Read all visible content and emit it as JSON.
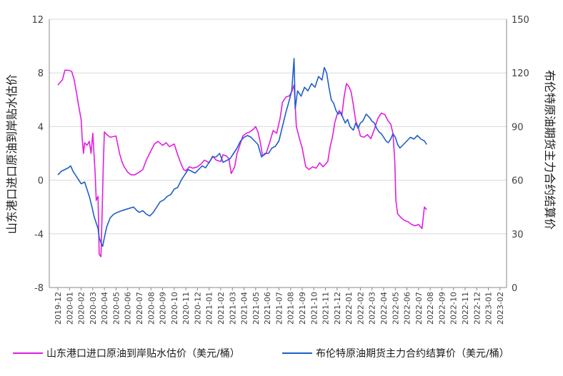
{
  "chart_data": {
    "type": "line",
    "y_left": {
      "label": "山东港口进口原油到岸贴水估价",
      "ticks": [
        "12",
        "8",
        "4",
        "0",
        "-4",
        "-8"
      ],
      "lim": [
        -8,
        12
      ]
    },
    "y_right": {
      "label": "布伦特原油期货主力合约结算价",
      "ticks": [
        "150",
        "120",
        "90",
        "60",
        "30",
        "0"
      ],
      "lim": [
        0,
        150
      ]
    },
    "x_labels": [
      "2019-12",
      "2020-01",
      "2020-02",
      "2020-03",
      "2020-04",
      "2020-05",
      "2020-06",
      "2020-07",
      "2020-08",
      "2020-09",
      "2020-10",
      "2020-11",
      "2020-12",
      "2021-01",
      "2021-02",
      "2021-03",
      "2021-04",
      "2021-05",
      "2021-06",
      "2021-07",
      "2021-08",
      "2021-09",
      "2021-10",
      "2021-11",
      "2021-12",
      "2022-01",
      "2022-02",
      "2022-03",
      "2022-04",
      "2022-05",
      "2022-06",
      "2022-07",
      "2022-08",
      "2022-09",
      "2022-10",
      "2022-11",
      "2022-12",
      "2023-01",
      "2023-02"
    ],
    "grid": "horizontal",
    "legend_position": "bottom",
    "series": [
      {
        "name": "山东港口进口原油到岸贴水估价（美元/桶）",
        "axis": "left",
        "color": "#e21ee2",
        "points": [
          [
            0,
            7.1
          ],
          [
            0.2,
            7.3
          ],
          [
            0.4,
            7.5
          ],
          [
            0.6,
            8.2
          ],
          [
            0.9,
            8.2
          ],
          [
            1.2,
            8.1
          ],
          [
            1.4,
            7.5
          ],
          [
            1.6,
            6.5
          ],
          [
            1.8,
            5.5
          ],
          [
            2.0,
            4.5
          ],
          [
            2.1,
            3.0
          ],
          [
            2.2,
            2.0
          ],
          [
            2.3,
            2.8
          ],
          [
            2.5,
            2.6
          ],
          [
            2.7,
            2.9
          ],
          [
            2.85,
            2.0
          ],
          [
            3.0,
            3.5
          ],
          [
            3.1,
            2.0
          ],
          [
            3.2,
            0.6
          ],
          [
            3.3,
            -1.5
          ],
          [
            3.45,
            -1.2
          ],
          [
            3.55,
            -5.5
          ],
          [
            3.7,
            -5.7
          ],
          [
            3.8,
            -2.5
          ],
          [
            3.9,
            1.0
          ],
          [
            4.0,
            3.6
          ],
          [
            4.2,
            3.4
          ],
          [
            4.5,
            3.2
          ],
          [
            5.0,
            3.3
          ],
          [
            5.3,
            2.0
          ],
          [
            5.5,
            1.4
          ],
          [
            5.7,
            1.0
          ],
          [
            6.0,
            0.6
          ],
          [
            6.3,
            0.4
          ],
          [
            6.6,
            0.4
          ],
          [
            7.0,
            0.6
          ],
          [
            7.3,
            0.8
          ],
          [
            7.6,
            1.5
          ],
          [
            8.0,
            2.2
          ],
          [
            8.3,
            2.7
          ],
          [
            8.6,
            2.9
          ],
          [
            9.0,
            2.6
          ],
          [
            9.3,
            2.8
          ],
          [
            9.6,
            2.5
          ],
          [
            10.0,
            2.7
          ],
          [
            10.3,
            1.9
          ],
          [
            10.6,
            1.2
          ],
          [
            10.8,
            0.8
          ],
          [
            11.0,
            0.7
          ],
          [
            11.3,
            1.0
          ],
          [
            11.6,
            0.9
          ],
          [
            12.0,
            1.0
          ],
          [
            12.3,
            1.2
          ],
          [
            12.6,
            1.5
          ],
          [
            13.0,
            1.3
          ],
          [
            13.3,
            1.8
          ],
          [
            13.6,
            1.5
          ],
          [
            14.0,
            1.4
          ],
          [
            14.2,
            1.9
          ],
          [
            14.5,
            1.8
          ],
          [
            14.7,
            1.6
          ],
          [
            14.9,
            0.5
          ],
          [
            15.2,
            1.0
          ],
          [
            15.4,
            2.0
          ],
          [
            15.6,
            2.5
          ],
          [
            15.9,
            3.3
          ],
          [
            16.2,
            3.5
          ],
          [
            16.5,
            3.6
          ],
          [
            16.8,
            3.8
          ],
          [
            17.0,
            4.0
          ],
          [
            17.2,
            3.6
          ],
          [
            17.4,
            2.8
          ],
          [
            17.6,
            1.8
          ],
          [
            17.9,
            2.0
          ],
          [
            18.2,
            2.8
          ],
          [
            18.5,
            3.7
          ],
          [
            18.8,
            3.5
          ],
          [
            19.1,
            4.6
          ],
          [
            19.3,
            5.8
          ],
          [
            19.6,
            6.2
          ],
          [
            19.9,
            6.3
          ],
          [
            20.1,
            6.6
          ],
          [
            20.3,
            7.1
          ],
          [
            20.5,
            4.0
          ],
          [
            20.8,
            3.0
          ],
          [
            21.0,
            2.4
          ],
          [
            21.3,
            1.0
          ],
          [
            21.6,
            0.8
          ],
          [
            21.9,
            1.0
          ],
          [
            22.2,
            0.9
          ],
          [
            22.5,
            1.3
          ],
          [
            22.8,
            1.0
          ],
          [
            23.2,
            1.4
          ],
          [
            23.4,
            2.5
          ],
          [
            23.6,
            3.2
          ],
          [
            23.8,
            4.3
          ],
          [
            24.0,
            4.9
          ],
          [
            24.2,
            5.2
          ],
          [
            24.4,
            4.8
          ],
          [
            24.6,
            6.2
          ],
          [
            24.8,
            7.2
          ],
          [
            25.0,
            7.0
          ],
          [
            25.2,
            6.6
          ],
          [
            25.4,
            5.6
          ],
          [
            25.6,
            4.4
          ],
          [
            25.8,
            4.0
          ],
          [
            26.0,
            3.3
          ],
          [
            26.3,
            3.2
          ],
          [
            26.6,
            3.4
          ],
          [
            26.9,
            3.1
          ],
          [
            27.2,
            3.8
          ],
          [
            27.5,
            4.6
          ],
          [
            27.8,
            5.0
          ],
          [
            28.1,
            4.9
          ],
          [
            28.4,
            4.4
          ],
          [
            28.6,
            4.2
          ],
          [
            28.8,
            3.5
          ],
          [
            28.95,
            1.5
          ],
          [
            29.05,
            -1.5
          ],
          [
            29.2,
            -2.5
          ],
          [
            29.5,
            -2.8
          ],
          [
            29.8,
            -3.0
          ],
          [
            30.1,
            -3.1
          ],
          [
            30.4,
            -3.3
          ],
          [
            30.7,
            -3.4
          ],
          [
            31.0,
            -3.3
          ],
          [
            31.3,
            -3.6
          ],
          [
            31.5,
            -2.0
          ],
          [
            31.7,
            -2.2
          ]
        ]
      },
      {
        "name": "布伦特原油期货主力合约结算价（美元/桶）",
        "axis": "right",
        "color": "#1f5fc8",
        "points": [
          [
            0,
            63
          ],
          [
            0.3,
            65
          ],
          [
            0.6,
            66
          ],
          [
            0.9,
            67
          ],
          [
            1.1,
            68
          ],
          [
            1.3,
            65
          ],
          [
            1.6,
            62
          ],
          [
            2.0,
            58
          ],
          [
            2.3,
            59
          ],
          [
            2.5,
            55
          ],
          [
            2.7,
            51
          ],
          [
            2.9,
            46
          ],
          [
            3.1,
            40
          ],
          [
            3.3,
            36
          ],
          [
            3.45,
            33
          ],
          [
            3.55,
            28
          ],
          [
            3.7,
            25
          ],
          [
            3.85,
            23
          ],
          [
            4.0,
            28
          ],
          [
            4.2,
            34
          ],
          [
            4.5,
            39
          ],
          [
            4.8,
            41
          ],
          [
            5.1,
            42
          ],
          [
            5.5,
            43
          ],
          [
            6.0,
            44
          ],
          [
            6.5,
            45
          ],
          [
            6.8,
            43
          ],
          [
            7.0,
            42
          ],
          [
            7.3,
            43
          ],
          [
            7.6,
            41
          ],
          [
            7.9,
            40
          ],
          [
            8.2,
            42
          ],
          [
            8.5,
            45
          ],
          [
            8.8,
            48
          ],
          [
            9.1,
            49
          ],
          [
            9.4,
            51
          ],
          [
            9.7,
            52
          ],
          [
            10.0,
            55
          ],
          [
            10.3,
            56
          ],
          [
            10.6,
            60
          ],
          [
            10.9,
            63
          ],
          [
            11.2,
            66
          ],
          [
            11.5,
            65
          ],
          [
            11.8,
            64
          ],
          [
            12.1,
            66
          ],
          [
            12.4,
            68
          ],
          [
            12.7,
            67
          ],
          [
            13.0,
            70
          ],
          [
            13.3,
            73
          ],
          [
            13.6,
            73
          ],
          [
            13.9,
            75
          ],
          [
            14.2,
            70
          ],
          [
            14.5,
            71
          ],
          [
            14.8,
            72
          ],
          [
            15.1,
            75
          ],
          [
            15.4,
            78
          ],
          [
            15.7,
            82
          ],
          [
            16.0,
            84
          ],
          [
            16.3,
            85
          ],
          [
            16.6,
            84
          ],
          [
            16.9,
            82
          ],
          [
            17.2,
            80
          ],
          [
            17.5,
            73
          ],
          [
            17.8,
            75
          ],
          [
            18.1,
            75
          ],
          [
            18.4,
            78
          ],
          [
            18.7,
            79
          ],
          [
            19.0,
            82
          ],
          [
            19.3,
            90
          ],
          [
            19.6,
            98
          ],
          [
            19.9,
            105
          ],
          [
            20.1,
            110
          ],
          [
            20.3,
            128
          ],
          [
            20.4,
            100
          ],
          [
            20.6,
            110
          ],
          [
            20.9,
            107
          ],
          [
            21.2,
            112
          ],
          [
            21.5,
            110
          ],
          [
            21.8,
            114
          ],
          [
            22.1,
            112
          ],
          [
            22.4,
            118
          ],
          [
            22.7,
            116
          ],
          [
            22.9,
            123
          ],
          [
            23.1,
            120
          ],
          [
            23.3,
            112
          ],
          [
            23.5,
            105
          ],
          [
            23.7,
            103
          ],
          [
            23.9,
            99
          ],
          [
            24.1,
            97
          ],
          [
            24.3,
            98
          ],
          [
            24.5,
            95
          ],
          [
            24.7,
            92
          ],
          [
            24.9,
            94
          ],
          [
            25.1,
            90
          ],
          [
            25.4,
            88
          ],
          [
            25.6,
            92
          ],
          [
            25.8,
            89
          ],
          [
            26.0,
            92
          ],
          [
            26.2,
            93
          ],
          [
            26.5,
            97
          ],
          [
            26.8,
            95
          ],
          [
            27.0,
            93
          ],
          [
            27.2,
            92
          ],
          [
            27.4,
            89
          ],
          [
            27.6,
            87
          ],
          [
            27.8,
            86
          ],
          [
            28.0,
            84
          ],
          [
            28.2,
            82
          ],
          [
            28.4,
            81
          ],
          [
            28.6,
            83
          ],
          [
            28.8,
            86
          ],
          [
            29.0,
            84
          ],
          [
            29.2,
            80
          ],
          [
            29.4,
            78
          ],
          [
            29.7,
            80
          ],
          [
            30.0,
            82
          ],
          [
            30.3,
            84
          ],
          [
            30.6,
            83
          ],
          [
            30.9,
            85
          ],
          [
            31.2,
            83
          ],
          [
            31.5,
            82
          ],
          [
            31.7,
            80
          ]
        ]
      }
    ]
  }
}
